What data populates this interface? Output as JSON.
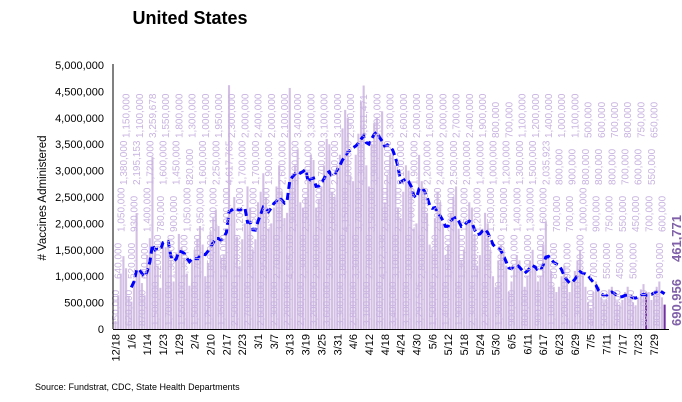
{
  "chart_data": {
    "type": "bar",
    "title": "United States",
    "ylabel": "# Vaccines Administered",
    "xlabel": "",
    "source": "Source: Fundstrat, CDC, State Health Departments",
    "ylim": [
      0,
      5000000
    ],
    "y_ticks": [
      "0",
      "500,000",
      "1,000,000",
      "1,500,000",
      "2,000,000",
      "2,500,000",
      "3,000,000",
      "3,500,000",
      "4,000,000",
      "4,500,000",
      "5,000,000"
    ],
    "x_tick_labels": [
      "12/18",
      "1/6",
      "1/14",
      "1/23",
      "1/29",
      "2/4",
      "2/10",
      "2/17",
      "2/23",
      "3/1",
      "3/7",
      "3/13",
      "3/19",
      "3/25",
      "3/31",
      "4/6",
      "4/12",
      "4/18",
      "4/24",
      "4/30",
      "5/6",
      "5/12",
      "5/18",
      "5/24",
      "5/30",
      "6/5",
      "6/11",
      "6/17",
      "6/23",
      "6/29",
      "7/5",
      "7/11",
      "7/17",
      "7/23",
      "7/29"
    ],
    "x_tick_every_n_bars": 6,
    "values": [
      150000,
      640000,
      1050000,
      1380000,
      1150000,
      620000,
      520000,
      930000,
      2195153,
      1100000,
      870000,
      640000,
      1400000,
      1720000,
      3259678,
      1500000,
      1200000,
      780000,
      1600000,
      1550000,
      1700000,
      1300000,
      900000,
      1450000,
      1800000,
      1550000,
      1350000,
      1050000,
      820000,
      1300000,
      1500000,
      1700000,
      1950000,
      1600000,
      1000000,
      1250000,
      1850000,
      2100000,
      2250000,
      1950000,
      1350000,
      1400000,
      1900000,
      4617765,
      2300000,
      2500000,
      1750000,
      1200000,
      1700000,
      2000000,
      2700000,
      2300000,
      1500000,
      1700000,
      2400000,
      2600000,
      2950000,
      2500000,
      1900000,
      2000000,
      2300000,
      2700000,
      3100000,
      2600000,
      2100000,
      2200000,
      4565310,
      2900000,
      3100000,
      3400000,
      2400000,
      2300000,
      2500000,
      2900000,
      3300000,
      3200000,
      2300000,
      2450000,
      2700000,
      3100000,
      3600000,
      3500000,
      2600000,
      2500000,
      3100000,
      3300000,
      3800000,
      4150000,
      4000000,
      2900000,
      2800000,
      3300000,
      3700000,
      4300000,
      4611471,
      3100000,
      2700000,
      3500000,
      3900000,
      4000000,
      3600000,
      4122338,
      2400000,
      2900000,
      3300000,
      3400000,
      3100000,
      2300000,
      2100000,
      2600000,
      3100000,
      3000000,
      2700000,
      1900000,
      2000000,
      3297526,
      2800000,
      2600000,
      2200000,
      1600000,
      1500000,
      2100000,
      2600000,
      2400000,
      2000000,
      1400000,
      1600000,
      2200000,
      2500000,
      2700000,
      1900000,
      1300000,
      1500000,
      2000000,
      2400000,
      2300000,
      1800000,
      1200000,
      1400000,
      1900000,
      2200000,
      2000000,
      1500000,
      1000000,
      800000,
      1300000,
      1600000,
      1500000,
      1200000,
      700000,
      900000,
      1200000,
      1400000,
      1300000,
      1100000,
      800000,
      1000000,
      1300000,
      1500000,
      1200000,
      900000,
      1000000,
      1600000,
      2035923,
      1400000,
      1100000,
      800000,
      700000,
      800000,
      1000000,
      1200000,
      900000,
      700000,
      900000,
      1100000,
      1300000,
      1500000,
      1000000,
      800000,
      500000,
      400000,
      700000,
      900000,
      800000,
      600000,
      500000,
      550000,
      750000,
      800000,
      700000,
      500000,
      450000,
      550000,
      700000,
      800000,
      650000,
      500000,
      450000,
      600000,
      750000,
      850000,
      690956,
      700000,
      550000,
      650000,
      800000,
      900000,
      600000,
      461771
    ],
    "highlighted_bars": [
      201,
      208
    ],
    "moving_average_window": 7,
    "colors": {
      "bar": "#d3bfe4",
      "highlight_bar": "#7030a0",
      "data_label": "#c8b3e0",
      "highlight_label": "#8060a8",
      "moving_average": "#0000ff"
    },
    "grid": false,
    "legend": "none"
  }
}
